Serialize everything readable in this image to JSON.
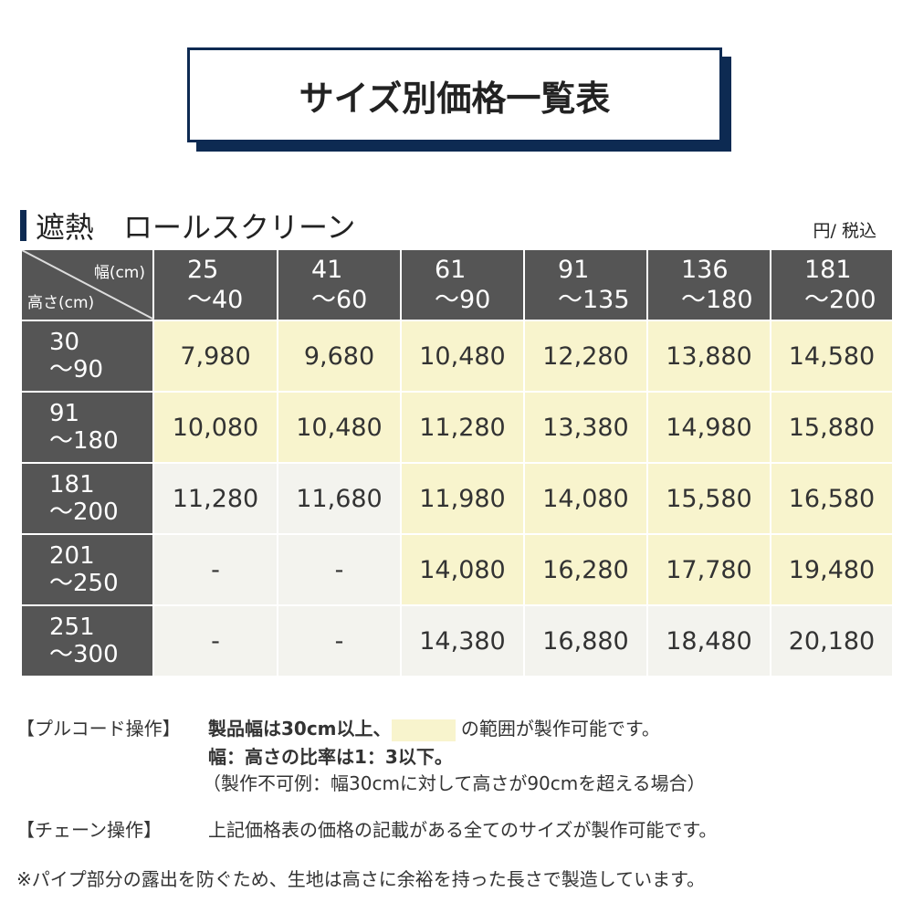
{
  "title": "サイズ別価格一覧表",
  "section": "遮熱　ロールスクリーン",
  "unit": "円/ 税込",
  "corner": {
    "width": "幅(cm)",
    "height": "高さ(cm)"
  },
  "columns": [
    [
      "25",
      "〜40"
    ],
    [
      "41",
      "〜60"
    ],
    [
      "61",
      "〜90"
    ],
    [
      "91",
      "〜135"
    ],
    [
      "136",
      "〜180"
    ],
    [
      "181",
      "〜200"
    ]
  ],
  "rows": [
    {
      "h": [
        "30",
        "〜90"
      ],
      "prices": [
        "7,980",
        "9,680",
        "10,480",
        "12,280",
        "13,880",
        "14,580"
      ],
      "avail": [
        1,
        1,
        1,
        1,
        1,
        1
      ]
    },
    {
      "h": [
        "91",
        "〜180"
      ],
      "prices": [
        "10,080",
        "10,480",
        "11,280",
        "13,380",
        "14,980",
        "15,880"
      ],
      "avail": [
        1,
        1,
        1,
        1,
        1,
        1
      ]
    },
    {
      "h": [
        "181",
        "〜200"
      ],
      "prices": [
        "11,280",
        "11,680",
        "11,980",
        "14,080",
        "15,580",
        "16,580"
      ],
      "avail": [
        0,
        0,
        1,
        1,
        1,
        1
      ]
    },
    {
      "h": [
        "201",
        "〜250"
      ],
      "prices": [
        "-",
        "-",
        "14,080",
        "16,280",
        "17,780",
        "19,480"
      ],
      "avail": [
        0,
        0,
        1,
        1,
        1,
        1
      ]
    },
    {
      "h": [
        "251",
        "〜300"
      ],
      "prices": [
        "-",
        "-",
        "14,380",
        "16,880",
        "18,480",
        "20,180"
      ],
      "avail": [
        0,
        0,
        0,
        0,
        0,
        0
      ]
    }
  ],
  "colors": {
    "available": "#f8f4cd",
    "other": "#f3f3ee",
    "header": "#555555",
    "navy": "#0d2a52"
  },
  "notes": {
    "pull_label": "【プルコード操作】",
    "pull_1a": "製品幅は30cm以上、",
    "pull_1b": "の範囲が製作可能です。",
    "pull_2": "幅：高さの比率は1：3以下。",
    "pull_3": "（製作不可例：幅30cmに対して高さが90cmを超える場合）",
    "chain_label": "【チェーン操作】",
    "chain_text": "上記価格表の価格の記載がある全てのサイズが製作可能です。",
    "footnote": "※パイプ部分の露出を防ぐため、生地は高さに余裕を持った長さで製造しています。"
  }
}
